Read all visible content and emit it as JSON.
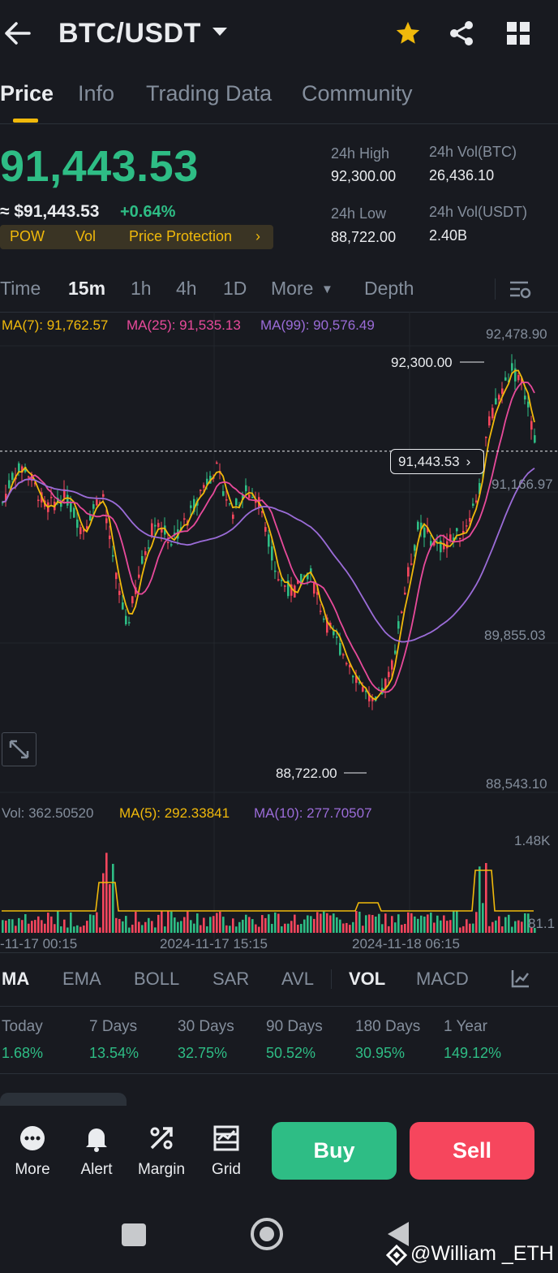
{
  "header": {
    "symbol": "BTC/USDT"
  },
  "tabs": [
    "Price",
    "Info",
    "Trading Data",
    "Community"
  ],
  "price": {
    "last": "91,443.53",
    "approx": "≈ $91,443.53",
    "change": "+0.64%",
    "high_label": "24h High",
    "high": "92,300.00",
    "low_label": "24h Low",
    "low": "88,722.00",
    "vol_btc_label": "24h Vol(BTC)",
    "vol_btc": "26,436.10",
    "vol_usdt_label": "24h Vol(USDT)",
    "vol_usdt": "2.40B"
  },
  "tags": {
    "pow": "POW",
    "vol": "Vol",
    "protection": "Price Protection"
  },
  "intervals": {
    "time": "Time",
    "m15": "15m",
    "h1": "1h",
    "h4": "4h",
    "d1": "1D",
    "more": "More",
    "depth": "Depth"
  },
  "ma": {
    "ma7": "MA(7): 91,762.57",
    "ma25": "MA(25): 91,535.13",
    "ma99": "MA(99): 90,576.49"
  },
  "axis": {
    "top": "92,478.90",
    "mid1": "91,166.97",
    "mid2": "89,855.03",
    "bottom": "88,543.10",
    "high_marker": "92,300.00",
    "low_marker": "88,722.00",
    "last_marker": "91,443.53"
  },
  "volume": {
    "vol": "Vol: 362.50520",
    "ma5": "MA(5): 292.33841",
    "ma10": "MA(10): 277.70507",
    "axis_top": "1.48K",
    "axis_bottom": "81.1"
  },
  "time_axis": [
    "-11-17 00:15",
    "2024-11-17 15:15",
    "2024-11-18 06:15"
  ],
  "indicators": [
    "MA",
    "EMA",
    "BOLL",
    "SAR",
    "AVL",
    "VOL",
    "MACD"
  ],
  "performance": [
    {
      "label": "Today",
      "value": "1.68%"
    },
    {
      "label": "7 Days",
      "value": "13.54%"
    },
    {
      "label": "30 Days",
      "value": "32.75%"
    },
    {
      "label": "90 Days",
      "value": "50.52%"
    },
    {
      "label": "180 Days",
      "value": "30.95%"
    },
    {
      "label": "1 Year",
      "value": "149.12%"
    }
  ],
  "bottom_bar": {
    "more": "More",
    "alert": "Alert",
    "margin": "Margin",
    "grid": "Grid",
    "buy": "Buy",
    "sell": "Sell"
  },
  "watermark": "@William _ETH",
  "colors": {
    "up": "#2ebd85",
    "down": "#f6465d",
    "accent": "#f0b90b",
    "ma7": "#f0b90b",
    "ma25": "#e84a9b",
    "ma99": "#9b6cd8"
  }
}
